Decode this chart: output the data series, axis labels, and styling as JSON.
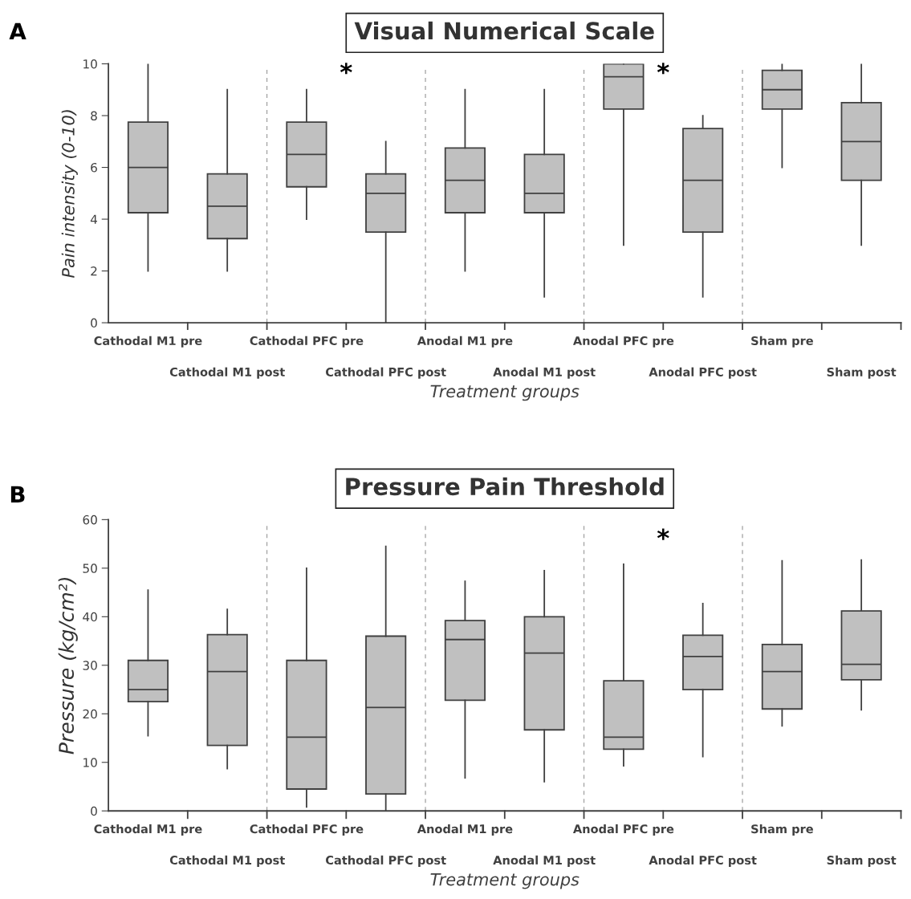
{
  "chart_data": [
    {
      "type": "box",
      "title": "Visual Numerical Scale",
      "xlabel": "Treatment groups",
      "ylabel": "Pain intensity (0-10)",
      "categories": [
        "Cathodal M1 pre",
        "Cathodal M1 post",
        "Cathodal PFC pre",
        "Cathodal PFC post",
        "Anodal M1 pre",
        "Anodal M1 post",
        "Anodal PFC pre",
        "Anodal PFC post",
        "Sham pre",
        "Sham post"
      ],
      "color": "#c0c0c0",
      "boxes": [
        {
          "low": 2,
          "q1": 4.25,
          "median": 6,
          "q3": 7.75,
          "high": 10
        },
        {
          "low": 2,
          "q1": 3.25,
          "median": 4.5,
          "q3": 5.75,
          "high": 9
        },
        {
          "low": 4,
          "q1": 5.25,
          "median": 6.5,
          "q3": 7.75,
          "high": 9
        },
        {
          "low": 0,
          "q1": 3.5,
          "median": 5,
          "q3": 5.75,
          "high": 7
        },
        {
          "low": 2,
          "q1": 4.25,
          "median": 5.5,
          "q3": 6.75,
          "high": 9
        },
        {
          "low": 1,
          "q1": 4.25,
          "median": 5,
          "q3": 6.5,
          "high": 9
        },
        {
          "low": 3,
          "q1": 8.25,
          "median": 9.5,
          "q3": 10,
          "high": 10
        },
        {
          "low": 1,
          "q1": 3.5,
          "median": 5.5,
          "q3": 7.5,
          "high": 8
        },
        {
          "low": 6,
          "q1": 8.25,
          "median": 9,
          "q3": 9.75,
          "high": 10
        },
        {
          "low": 3,
          "q1": 5.5,
          "median": 7,
          "q3": 8.5,
          "high": 10
        }
      ],
      "ylim": [
        0,
        10
      ],
      "yticks": [
        0,
        2,
        4,
        6,
        8,
        10
      ],
      "grid": false,
      "annotations": [
        "A",
        "*",
        "*"
      ]
    },
    {
      "type": "box",
      "title": "Pressure Pain Threshold",
      "xlabel": "Treatment groups",
      "ylabel": "Pressure (kg/cm²)",
      "categories": [
        "Cathodal M1 pre",
        "Cathodal M1 post",
        "Cathodal PFC pre",
        "Cathodal PFC post",
        "Anodal M1 pre",
        "Anodal M1 post",
        "Anodal PFC pre",
        "Anodal PFC post",
        "Sham pre",
        "Sham post"
      ],
      "color": "#c0c0c0",
      "boxes": [
        {
          "low": 15.5,
          "q1": 22.5,
          "median": 25,
          "q3": 31,
          "high": 45.5
        },
        {
          "low": 8.7,
          "q1": 13.5,
          "median": 28.7,
          "q3": 36.3,
          "high": 41.5
        },
        {
          "low": 0.8,
          "q1": 4.5,
          "median": 15.2,
          "q3": 31,
          "high": 50
        },
        {
          "low": 0,
          "q1": 3.5,
          "median": 21.3,
          "q3": 36,
          "high": 54.5
        },
        {
          "low": 6.8,
          "q1": 22.8,
          "median": 35.3,
          "q3": 39.2,
          "high": 47.3
        },
        {
          "low": 6,
          "q1": 16.7,
          "median": 32.5,
          "q3": 40,
          "high": 49.5
        },
        {
          "low": 9.3,
          "q1": 12.7,
          "median": 15.2,
          "q3": 26.8,
          "high": 50.8
        },
        {
          "low": 11.2,
          "q1": 25,
          "median": 31.8,
          "q3": 36.2,
          "high": 42.7
        },
        {
          "low": 17.5,
          "q1": 21,
          "median": 28.7,
          "q3": 34.3,
          "high": 51.5
        },
        {
          "low": 20.8,
          "q1": 27,
          "median": 30.2,
          "q3": 41.2,
          "high": 51.7
        }
      ],
      "ylim": [
        0,
        60
      ],
      "yticks": [
        0,
        10,
        20,
        30,
        40,
        50,
        60
      ],
      "grid": false,
      "annotations": [
        "B",
        "*"
      ]
    }
  ]
}
